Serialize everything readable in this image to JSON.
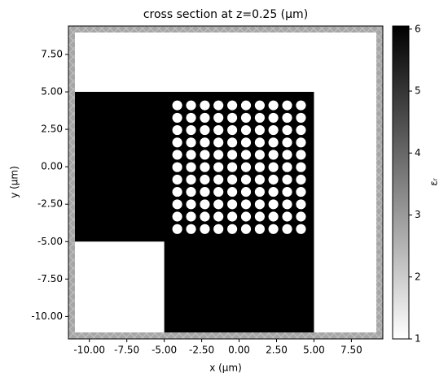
{
  "chart_data": {
    "type": "structure",
    "title": "cross section at z=0.25 (μm)",
    "x_label": "x (μm)",
    "y_label": "y (μm)",
    "xlim": [
      -11.4,
      9.6
    ],
    "ylim": [
      -11.5,
      9.4
    ],
    "xticks": [
      {
        "value": -10,
        "label": "-10.00"
      },
      {
        "value": -7.5,
        "label": "-7.50"
      },
      {
        "value": -5,
        "label": "-5.00"
      },
      {
        "value": -2.5,
        "label": "-2.50"
      },
      {
        "value": 0,
        "label": "0.00"
      },
      {
        "value": 2.5,
        "label": "2.50"
      },
      {
        "value": 5,
        "label": "5.00"
      },
      {
        "value": 7.5,
        "label": "7.50"
      }
    ],
    "yticks": [
      {
        "value": 7.5,
        "label": "7.50"
      },
      {
        "value": 5,
        "label": "5.00"
      },
      {
        "value": 2.5,
        "label": "2.50"
      },
      {
        "value": 0,
        "label": "0.00"
      },
      {
        "value": -2.5,
        "label": "-2.50"
      },
      {
        "value": -5,
        "label": "-5.00"
      },
      {
        "value": -7.5,
        "label": "-7.50"
      },
      {
        "value": -10,
        "label": "-10.00"
      }
    ],
    "background_permittivity": 1,
    "structure_permittivity": 6.05,
    "structure_x": [
      -11.4,
      5,
      5,
      -5,
      -5,
      -11.4
    ],
    "structure_y": [
      5,
      5,
      -11.5,
      -11.5,
      -5,
      -5
    ],
    "hole_x": [
      -4.13,
      -3.21,
      -2.29,
      -1.38,
      -0.46,
      0.46,
      1.38,
      2.29,
      3.21,
      4.13
    ],
    "hole_y": [
      4.1,
      3.27,
      2.45,
      1.62,
      0.8,
      -0.03,
      -0.86,
      -1.68,
      -2.51,
      -3.33,
      -4.16
    ],
    "hole_radius": 0.33,
    "colorbar_label": "εᵣ",
    "colorbar_lim": [
      1,
      6.05
    ],
    "colorbar_ticks": [
      1,
      2,
      3,
      4,
      5,
      6
    ]
  }
}
